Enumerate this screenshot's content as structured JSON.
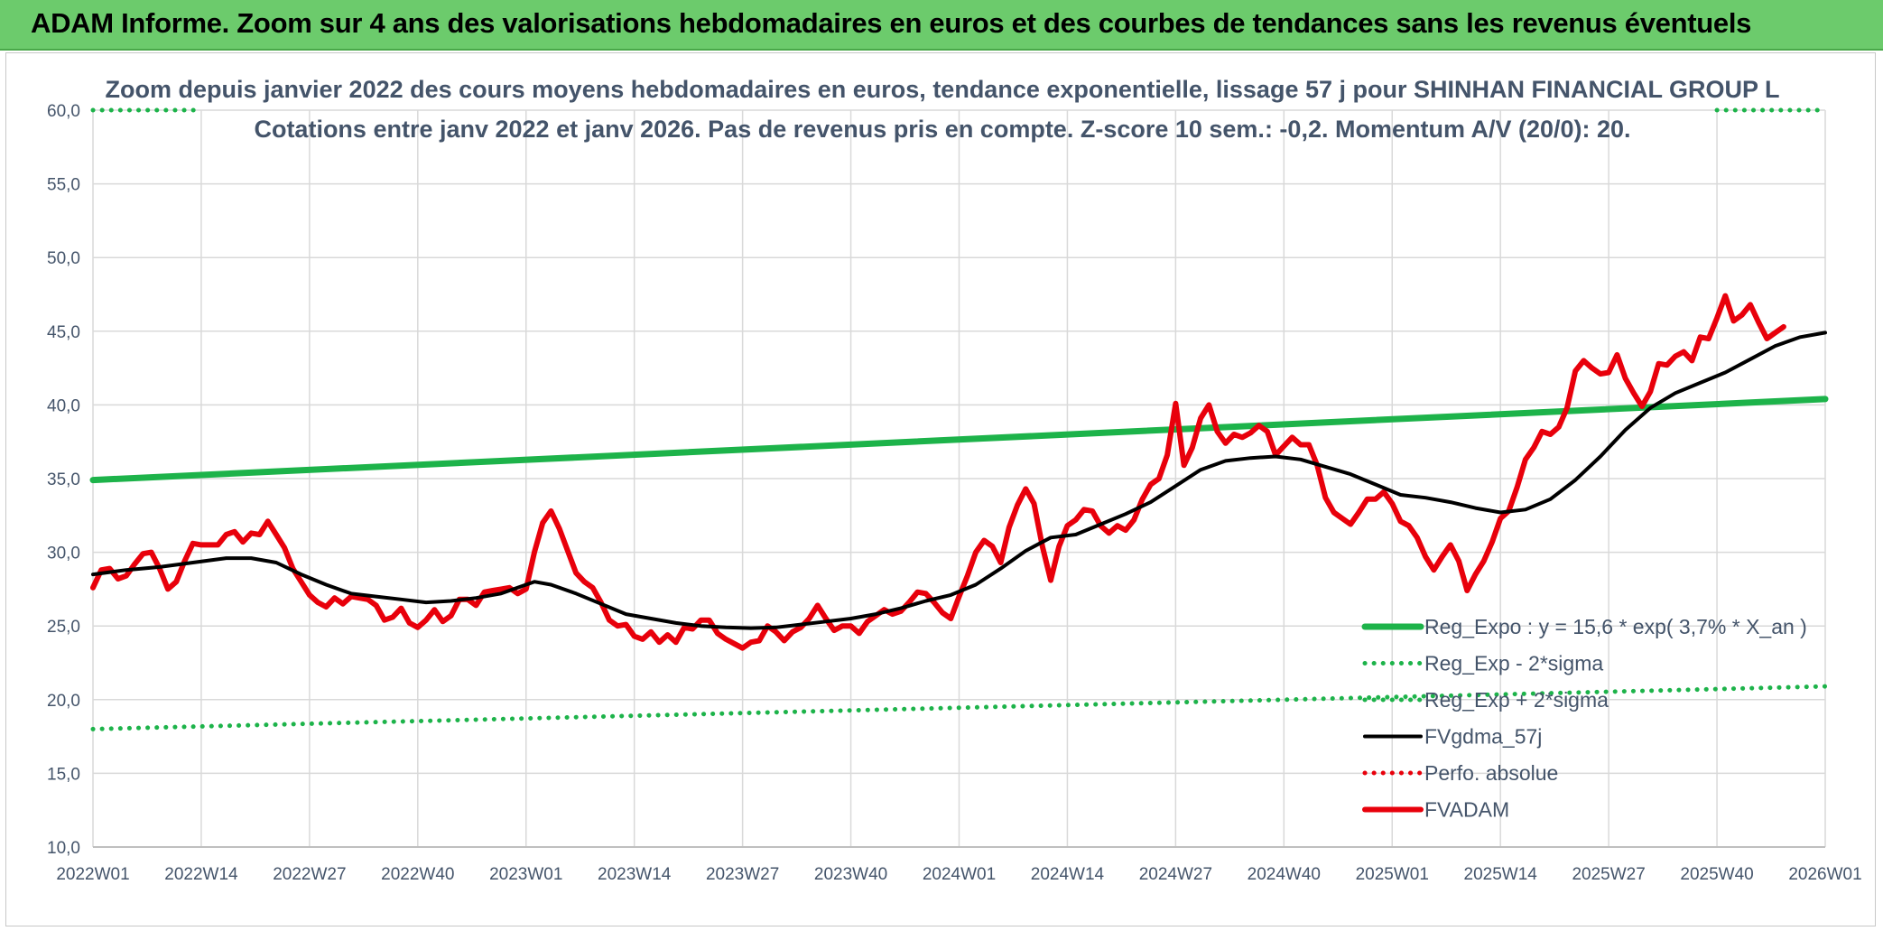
{
  "banner": {
    "title": "ADAM Informe. Zoom sur 4 ans des valorisations hebdomadaires en euros et des courbes de tendances sans les revenus éventuels"
  },
  "chart_data": {
    "type": "line",
    "title": "Zoom depuis janvier 2022 des cours moyens hebdomadaires en euros, tendance exponentielle, lissage 57 j pour SHINHAN FINANCIAL GROUP L",
    "subtitle": "Cotations entre janv 2022 et janv 2026. Pas de revenus pris en compte. Z-score 10 sem.: -0,2. Momentum A/V (20/0): 20.",
    "xlabel": "",
    "ylabel": "",
    "ylim": [
      10,
      60
    ],
    "xlim": [
      0,
      208
    ],
    "grid": true,
    "legend_position": "bottom-right",
    "y_ticks": [
      "10,0",
      "15,0",
      "20,0",
      "25,0",
      "30,0",
      "35,0",
      "40,0",
      "45,0",
      "50,0",
      "55,0",
      "60,0"
    ],
    "x_ticks": [
      {
        "x": 0,
        "label": "2022W01"
      },
      {
        "x": 13,
        "label": "2022W14"
      },
      {
        "x": 26,
        "label": "2022W27"
      },
      {
        "x": 39,
        "label": "2022W40"
      },
      {
        "x": 52,
        "label": "2023W01"
      },
      {
        "x": 65,
        "label": "2023W14"
      },
      {
        "x": 78,
        "label": "2023W27"
      },
      {
        "x": 91,
        "label": "2023W40"
      },
      {
        "x": 104,
        "label": "2024W01"
      },
      {
        "x": 117,
        "label": "2024W14"
      },
      {
        "x": 130,
        "label": "2024W27"
      },
      {
        "x": 143,
        "label": "2024W40"
      },
      {
        "x": 156,
        "label": "2025W01"
      },
      {
        "x": 169,
        "label": "2025W14"
      },
      {
        "x": 182,
        "label": "2025W27"
      },
      {
        "x": 195,
        "label": "2025W40"
      },
      {
        "x": 208,
        "label": "2026W01"
      }
    ],
    "series": [
      {
        "name": "Reg_Expo : y = 15,6 * exp( 3,7% *  X_an )",
        "color": "#1db34a",
        "style": "solid-thick",
        "points": [
          [
            0,
            34.9
          ],
          [
            208,
            40.4
          ]
        ]
      },
      {
        "name": "Reg_Exp - 2*sigma",
        "color": "#1db34a",
        "style": "dotted",
        "points": [
          [
            0,
            18.0
          ],
          [
            208,
            20.9
          ]
        ]
      },
      {
        "name": "Reg_Exp + 2*sigma",
        "color": "#1db34a",
        "style": "dotted",
        "points": [
          [
            0,
            60.0
          ],
          [
            13,
            60.0
          ],
          [
            195,
            60.0
          ],
          [
            208,
            60.0
          ]
        ]
      },
      {
        "name": "FVgdma_57j",
        "color": "#000000",
        "style": "solid",
        "points": [
          [
            0,
            28.5
          ],
          [
            4,
            28.8
          ],
          [
            8,
            29.0
          ],
          [
            12,
            29.3
          ],
          [
            16,
            29.6
          ],
          [
            19,
            29.6
          ],
          [
            22,
            29.3
          ],
          [
            25,
            28.5
          ],
          [
            28,
            27.8
          ],
          [
            31,
            27.2
          ],
          [
            34,
            27.0
          ],
          [
            37,
            26.8
          ],
          [
            40,
            26.6
          ],
          [
            43,
            26.7
          ],
          [
            46,
            26.9
          ],
          [
            49,
            27.2
          ],
          [
            51,
            27.6
          ],
          [
            53,
            28.0
          ],
          [
            55,
            27.8
          ],
          [
            58,
            27.2
          ],
          [
            61,
            26.5
          ],
          [
            64,
            25.8
          ],
          [
            67,
            25.5
          ],
          [
            70,
            25.2
          ],
          [
            73,
            25.0
          ],
          [
            76,
            24.9
          ],
          [
            79,
            24.85
          ],
          [
            82,
            24.9
          ],
          [
            85,
            25.1
          ],
          [
            88,
            25.3
          ],
          [
            91,
            25.5
          ],
          [
            94,
            25.8
          ],
          [
            97,
            26.2
          ],
          [
            100,
            26.7
          ],
          [
            103,
            27.1
          ],
          [
            106,
            27.8
          ],
          [
            109,
            28.9
          ],
          [
            112,
            30.1
          ],
          [
            115,
            31.0
          ],
          [
            118,
            31.2
          ],
          [
            121,
            31.9
          ],
          [
            124,
            32.6
          ],
          [
            127,
            33.4
          ],
          [
            130,
            34.5
          ],
          [
            133,
            35.6
          ],
          [
            136,
            36.2
          ],
          [
            139,
            36.4
          ],
          [
            142,
            36.5
          ],
          [
            145,
            36.3
          ],
          [
            148,
            35.8
          ],
          [
            151,
            35.3
          ],
          [
            154,
            34.6
          ],
          [
            157,
            33.9
          ],
          [
            160,
            33.7
          ],
          [
            163,
            33.4
          ],
          [
            166,
            33.0
          ],
          [
            169,
            32.7
          ],
          [
            172,
            32.9
          ],
          [
            175,
            33.6
          ],
          [
            178,
            34.9
          ],
          [
            181,
            36.5
          ],
          [
            184,
            38.3
          ],
          [
            187,
            39.8
          ],
          [
            190,
            40.8
          ],
          [
            193,
            41.5
          ],
          [
            196,
            42.2
          ],
          [
            199,
            43.1
          ],
          [
            202,
            44.0
          ],
          [
            205,
            44.6
          ],
          [
            208,
            44.9
          ]
        ]
      },
      {
        "name": "Perfo. absolue",
        "color": "#e8000b",
        "style": "dotted",
        "points": []
      },
      {
        "name": "FVADAM",
        "color": "#e8000b",
        "style": "solid-thick",
        "points": [
          [
            0,
            27.6
          ],
          [
            1,
            28.8
          ],
          [
            2,
            28.9
          ],
          [
            3,
            28.2
          ],
          [
            4,
            28.4
          ],
          [
            5,
            29.2
          ],
          [
            6,
            29.9
          ],
          [
            7,
            30.0
          ],
          [
            8,
            28.9
          ],
          [
            9,
            27.5
          ],
          [
            10,
            28.0
          ],
          [
            11,
            29.4
          ],
          [
            12,
            30.6
          ],
          [
            13,
            30.5
          ],
          [
            14,
            30.5
          ],
          [
            15,
            30.5
          ],
          [
            16,
            31.2
          ],
          [
            17,
            31.4
          ],
          [
            18,
            30.7
          ],
          [
            19,
            31.3
          ],
          [
            20,
            31.2
          ],
          [
            21,
            32.1
          ],
          [
            22,
            31.2
          ],
          [
            23,
            30.3
          ],
          [
            24,
            28.9
          ],
          [
            25,
            28.0
          ],
          [
            26,
            27.1
          ],
          [
            27,
            26.6
          ],
          [
            28,
            26.3
          ],
          [
            29,
            26.9
          ],
          [
            30,
            26.5
          ],
          [
            31,
            27.0
          ],
          [
            32,
            26.9
          ],
          [
            33,
            26.8
          ],
          [
            34,
            26.4
          ],
          [
            35,
            25.4
          ],
          [
            36,
            25.6
          ],
          [
            37,
            26.2
          ],
          [
            38,
            25.2
          ],
          [
            39,
            24.9
          ],
          [
            40,
            25.4
          ],
          [
            41,
            26.1
          ],
          [
            42,
            25.3
          ],
          [
            43,
            25.7
          ],
          [
            44,
            26.8
          ],
          [
            45,
            26.8
          ],
          [
            46,
            26.4
          ],
          [
            47,
            27.3
          ],
          [
            48,
            27.4
          ],
          [
            49,
            27.5
          ],
          [
            50,
            27.6
          ],
          [
            51,
            27.2
          ],
          [
            52,
            27.5
          ],
          [
            53,
            30.0
          ],
          [
            54,
            32.0
          ],
          [
            55,
            32.8
          ],
          [
            56,
            31.6
          ],
          [
            57,
            30.1
          ],
          [
            58,
            28.6
          ],
          [
            59,
            28.0
          ],
          [
            60,
            27.6
          ],
          [
            61,
            26.6
          ],
          [
            62,
            25.4
          ],
          [
            63,
            25.0
          ],
          [
            64,
            25.1
          ],
          [
            65,
            24.3
          ],
          [
            66,
            24.1
          ],
          [
            67,
            24.6
          ],
          [
            68,
            23.9
          ],
          [
            69,
            24.4
          ],
          [
            70,
            23.9
          ],
          [
            71,
            24.9
          ],
          [
            72,
            24.8
          ],
          [
            73,
            25.4
          ],
          [
            74,
            25.4
          ],
          [
            75,
            24.5
          ],
          [
            76,
            24.1
          ],
          [
            77,
            23.8
          ],
          [
            78,
            23.5
          ],
          [
            79,
            23.9
          ],
          [
            80,
            24.0
          ],
          [
            81,
            25.0
          ],
          [
            82,
            24.6
          ],
          [
            83,
            24.0
          ],
          [
            84,
            24.6
          ],
          [
            85,
            24.9
          ],
          [
            86,
            25.5
          ],
          [
            87,
            26.4
          ],
          [
            88,
            25.5
          ],
          [
            89,
            24.7
          ],
          [
            90,
            25.0
          ],
          [
            91,
            25.0
          ],
          [
            92,
            24.5
          ],
          [
            93,
            25.3
          ],
          [
            94,
            25.7
          ],
          [
            95,
            26.1
          ],
          [
            96,
            25.8
          ],
          [
            97,
            26.0
          ],
          [
            98,
            26.6
          ],
          [
            99,
            27.3
          ],
          [
            100,
            27.2
          ],
          [
            101,
            26.6
          ],
          [
            102,
            25.9
          ],
          [
            103,
            25.5
          ],
          [
            104,
            27.0
          ],
          [
            105,
            28.4
          ],
          [
            106,
            30.0
          ],
          [
            107,
            30.8
          ],
          [
            108,
            30.4
          ],
          [
            109,
            29.3
          ],
          [
            110,
            31.7
          ],
          [
            111,
            33.2
          ],
          [
            112,
            34.3
          ],
          [
            113,
            33.3
          ],
          [
            114,
            30.4
          ],
          [
            115,
            28.1
          ],
          [
            116,
            30.4
          ],
          [
            117,
            31.8
          ],
          [
            118,
            32.2
          ],
          [
            119,
            32.9
          ],
          [
            120,
            32.8
          ],
          [
            121,
            31.8
          ],
          [
            122,
            31.3
          ],
          [
            123,
            31.8
          ],
          [
            124,
            31.5
          ],
          [
            125,
            32.2
          ],
          [
            126,
            33.6
          ],
          [
            127,
            34.6
          ],
          [
            128,
            35.0
          ],
          [
            129,
            36.6
          ],
          [
            130,
            40.1
          ],
          [
            131,
            35.9
          ],
          [
            132,
            37.1
          ],
          [
            133,
            39.1
          ],
          [
            134,
            40.0
          ],
          [
            135,
            38.2
          ],
          [
            136,
            37.4
          ],
          [
            137,
            38.0
          ],
          [
            138,
            37.8
          ],
          [
            139,
            38.1
          ],
          [
            140,
            38.6
          ],
          [
            141,
            38.2
          ],
          [
            142,
            36.6
          ],
          [
            143,
            37.2
          ],
          [
            144,
            37.8
          ],
          [
            145,
            37.3
          ],
          [
            146,
            37.3
          ],
          [
            147,
            35.9
          ],
          [
            148,
            33.7
          ],
          [
            149,
            32.7
          ],
          [
            150,
            32.3
          ],
          [
            151,
            31.9
          ],
          [
            152,
            32.7
          ],
          [
            153,
            33.6
          ],
          [
            154,
            33.6
          ],
          [
            155,
            34.1
          ],
          [
            156,
            33.3
          ],
          [
            157,
            32.1
          ],
          [
            158,
            31.8
          ],
          [
            159,
            31.0
          ],
          [
            160,
            29.7
          ],
          [
            161,
            28.8
          ],
          [
            162,
            29.7
          ],
          [
            163,
            30.5
          ],
          [
            164,
            29.4
          ],
          [
            165,
            27.4
          ],
          [
            166,
            28.5
          ],
          [
            167,
            29.4
          ],
          [
            168,
            30.7
          ],
          [
            169,
            32.3
          ],
          [
            170,
            32.8
          ],
          [
            171,
            34.4
          ],
          [
            172,
            36.3
          ],
          [
            173,
            37.1
          ],
          [
            174,
            38.2
          ],
          [
            175,
            38.0
          ],
          [
            176,
            38.5
          ],
          [
            177,
            39.8
          ],
          [
            178,
            42.3
          ],
          [
            179,
            43.0
          ],
          [
            180,
            42.5
          ],
          [
            181,
            42.1
          ],
          [
            182,
            42.2
          ],
          [
            183,
            43.4
          ],
          [
            184,
            41.8
          ],
          [
            185,
            40.8
          ],
          [
            186,
            39.9
          ],
          [
            187,
            40.9
          ],
          [
            188,
            42.8
          ],
          [
            189,
            42.7
          ],
          [
            190,
            43.3
          ],
          [
            191,
            43.6
          ],
          [
            192,
            43.0
          ],
          [
            193,
            44.6
          ],
          [
            194,
            44.5
          ],
          [
            195,
            45.9
          ],
          [
            196,
            47.4
          ],
          [
            197,
            45.7
          ],
          [
            198,
            46.1
          ],
          [
            199,
            46.8
          ],
          [
            200,
            45.6
          ],
          [
            201,
            44.5
          ],
          [
            202,
            44.9
          ],
          [
            203,
            45.3
          ]
        ]
      }
    ]
  }
}
